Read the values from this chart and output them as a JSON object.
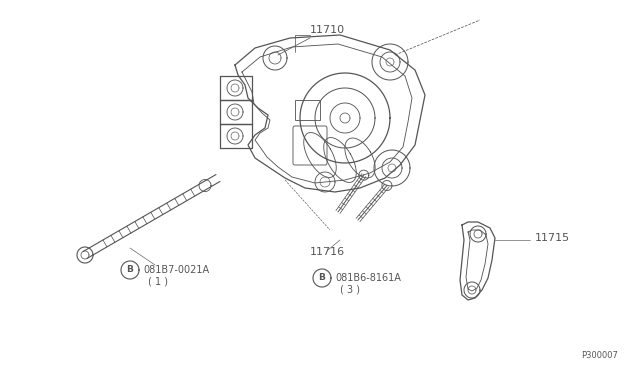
{
  "bg_color": "#ffffff",
  "line_color": "#555555",
  "diagram_id": "P300007",
  "font_size": 8,
  "small_font_size": 7,
  "label_11710": "11710",
  "label_11715": "11715",
  "label_11716": "11716",
  "bolt1_code": "081B7-0021A",
  "bolt1_num": "( 1 )",
  "bolt2_code": "081B6-8161A",
  "bolt2_num": "( 3 )"
}
